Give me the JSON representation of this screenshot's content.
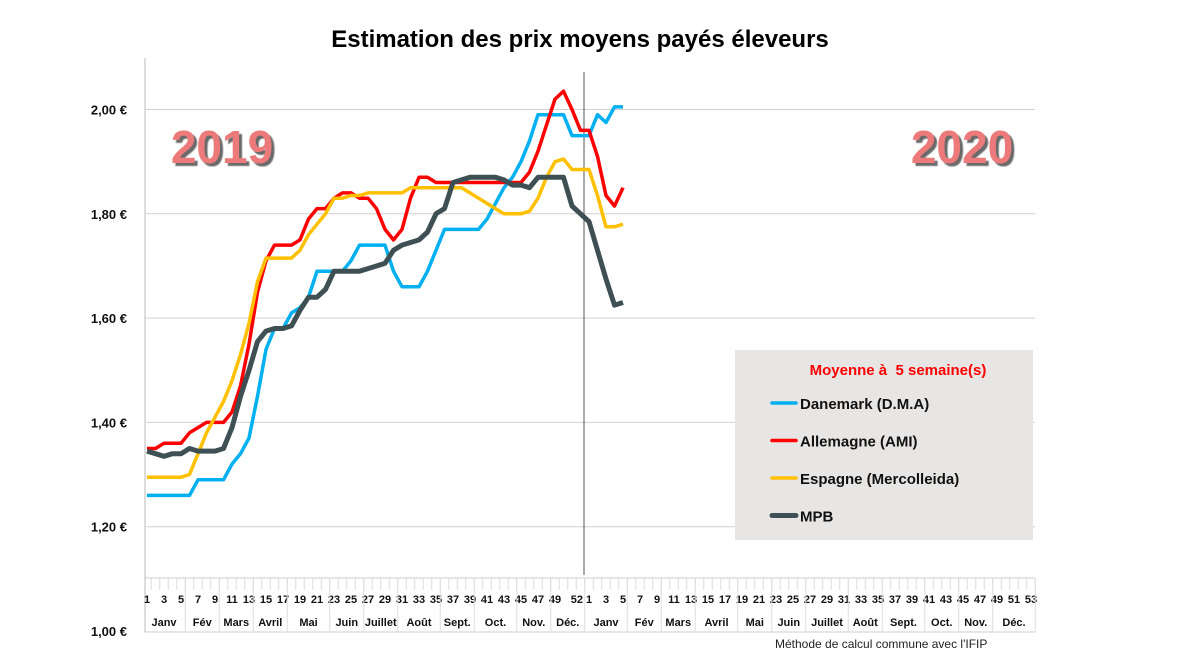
{
  "chart_data": {
    "type": "line",
    "title": "Estimation des prix moyens payés éleveurs",
    "ylim": [
      1.0,
      2.1
    ],
    "y_ticks": [
      "1,00 €",
      "1,20 €",
      "1,40 €",
      "1,60 €",
      "1,80 €",
      "2,00 €"
    ],
    "y_tick_values": [
      1.0,
      1.2,
      1.4,
      1.6,
      1.8,
      2.0
    ],
    "grid": true,
    "year_labels": [
      "2019",
      "2020"
    ],
    "x_weeks": {
      "2019": [
        1,
        2,
        3,
        4,
        5,
        6,
        7,
        8,
        9,
        10,
        11,
        12,
        13,
        14,
        15,
        16,
        17,
        18,
        19,
        20,
        21,
        22,
        23,
        24,
        25,
        26,
        27,
        28,
        29,
        30,
        31,
        32,
        33,
        34,
        35,
        36,
        37,
        38,
        39,
        40,
        41,
        42,
        43,
        44,
        45,
        46,
        47,
        48,
        49,
        50,
        51,
        52
      ],
      "2020": [
        1,
        2,
        3,
        4,
        5
      ]
    },
    "week_tick_labels": {
      "2019": [
        "1",
        "3",
        "5",
        "7",
        "9",
        "11",
        "13",
        "15",
        "17",
        "19",
        "21",
        "23",
        "25",
        "27",
        "29",
        "31",
        "33",
        "35",
        "37",
        "39",
        "41",
        "43",
        "45",
        "47",
        "49",
        "52"
      ],
      "2020": [
        "1",
        "3",
        "5",
        "7",
        "9",
        "11",
        "13",
        "15",
        "17",
        "19",
        "21",
        "23",
        "25",
        "27",
        "29",
        "31",
        "33",
        "35",
        "37",
        "39",
        "41",
        "43",
        "45",
        "47",
        "49",
        "51",
        "53"
      ]
    },
    "months": {
      "2019": [
        {
          "label": "Janv",
          "weeks": [
            1,
            5
          ]
        },
        {
          "label": "Fév",
          "weeks": [
            6,
            9
          ]
        },
        {
          "label": "Mars",
          "weeks": [
            10,
            13
          ]
        },
        {
          "label": "Avril",
          "weeks": [
            14,
            17
          ]
        },
        {
          "label": "Mai",
          "weeks": [
            18,
            22
          ]
        },
        {
          "label": "Juin",
          "weeks": [
            23,
            26
          ]
        },
        {
          "label": "Juillet",
          "weeks": [
            27,
            30
          ]
        },
        {
          "label": "Août",
          "weeks": [
            31,
            35
          ]
        },
        {
          "label": "Sept.",
          "weeks": [
            36,
            39
          ]
        },
        {
          "label": "Oct.",
          "weeks": [
            40,
            44
          ]
        },
        {
          "label": "Nov.",
          "weeks": [
            45,
            48
          ]
        },
        {
          "label": "Déc.",
          "weeks": [
            49,
            52
          ]
        }
      ],
      "2020": [
        {
          "label": "Janv",
          "weeks": [
            1,
            5
          ]
        },
        {
          "label": "Fév",
          "weeks": [
            6,
            9
          ]
        },
        {
          "label": "Mars",
          "weeks": [
            10,
            13
          ]
        },
        {
          "label": "Avril",
          "weeks": [
            14,
            18
          ]
        },
        {
          "label": "Mai",
          "weeks": [
            19,
            22
          ]
        },
        {
          "label": "Juin",
          "weeks": [
            23,
            26
          ]
        },
        {
          "label": "Juillet",
          "weeks": [
            27,
            31
          ]
        },
        {
          "label": "Août",
          "weeks": [
            32,
            35
          ]
        },
        {
          "label": "Sept.",
          "weeks": [
            36,
            40
          ]
        },
        {
          "label": "Oct.",
          "weeks": [
            41,
            44
          ]
        },
        {
          "label": "Nov.",
          "weeks": [
            45,
            48
          ]
        },
        {
          "label": "Déc.",
          "weeks": [
            49,
            53
          ]
        }
      ]
    },
    "legend": {
      "title": "Moyenne à  5 semaine(s)",
      "title_color": "#ff0000",
      "placement": "bottom-right"
    },
    "series": [
      {
        "name": "Danemark (D.M.A)",
        "color": "#00b0f0",
        "values": [
          1.26,
          1.26,
          1.26,
          1.26,
          1.26,
          1.26,
          1.29,
          1.29,
          1.29,
          1.29,
          1.32,
          1.34,
          1.37,
          1.45,
          1.54,
          1.58,
          1.58,
          1.61,
          1.62,
          1.64,
          1.69,
          1.69,
          1.69,
          1.69,
          1.71,
          1.74,
          1.74,
          1.74,
          1.74,
          1.69,
          1.66,
          1.66,
          1.66,
          1.69,
          1.73,
          1.77,
          1.77,
          1.77,
          1.77,
          1.77,
          1.79,
          1.82,
          1.85,
          1.87,
          1.9,
          1.94,
          1.99,
          1.99,
          1.99,
          1.99,
          1.95,
          1.95,
          1.95,
          1.99,
          1.975,
          2.005,
          2.005
        ]
      },
      {
        "name": "Allemagne (AMI)",
        "color": "#ff0000",
        "values": [
          1.35,
          1.35,
          1.36,
          1.36,
          1.36,
          1.38,
          1.39,
          1.4,
          1.4,
          1.4,
          1.42,
          1.47,
          1.55,
          1.65,
          1.71,
          1.74,
          1.74,
          1.74,
          1.75,
          1.79,
          1.81,
          1.81,
          1.83,
          1.84,
          1.84,
          1.83,
          1.83,
          1.81,
          1.77,
          1.75,
          1.77,
          1.83,
          1.87,
          1.87,
          1.86,
          1.86,
          1.86,
          1.86,
          1.86,
          1.86,
          1.86,
          1.86,
          1.86,
          1.86,
          1.86,
          1.88,
          1.92,
          1.97,
          2.02,
          2.035,
          2.0,
          1.96,
          1.96,
          1.91,
          1.835,
          1.815,
          1.85
        ]
      },
      {
        "name": "Espagne (Mercolleida)",
        "color": "#ffc000",
        "values": [
          1.295,
          1.295,
          1.295,
          1.295,
          1.295,
          1.3,
          1.34,
          1.38,
          1.41,
          1.44,
          1.48,
          1.53,
          1.59,
          1.67,
          1.715,
          1.715,
          1.715,
          1.715,
          1.73,
          1.76,
          1.78,
          1.8,
          1.83,
          1.83,
          1.835,
          1.835,
          1.84,
          1.84,
          1.84,
          1.84,
          1.84,
          1.85,
          1.85,
          1.85,
          1.85,
          1.85,
          1.85,
          1.85,
          1.84,
          1.83,
          1.82,
          1.81,
          1.8,
          1.8,
          1.8,
          1.805,
          1.83,
          1.87,
          1.9,
          1.905,
          1.885,
          1.885,
          1.885,
          1.835,
          1.775,
          1.775,
          1.78
        ]
      },
      {
        "name": "MPB",
        "color": "#3f5054",
        "values": [
          1.345,
          1.34,
          1.335,
          1.34,
          1.34,
          1.35,
          1.345,
          1.345,
          1.345,
          1.35,
          1.39,
          1.45,
          1.5,
          1.555,
          1.575,
          1.58,
          1.58,
          1.585,
          1.615,
          1.64,
          1.64,
          1.655,
          1.69,
          1.69,
          1.69,
          1.69,
          1.695,
          1.7,
          1.705,
          1.73,
          1.74,
          1.745,
          1.75,
          1.765,
          1.8,
          1.81,
          1.86,
          1.865,
          1.87,
          1.87,
          1.87,
          1.87,
          1.865,
          1.855,
          1.855,
          1.85,
          1.87,
          1.87,
          1.87,
          1.87,
          1.815,
          1.8,
          1.785,
          1.73,
          1.675,
          1.625,
          1.63
        ]
      }
    ],
    "footnote": "Méthode de calcul commune avec l'IFIP"
  }
}
